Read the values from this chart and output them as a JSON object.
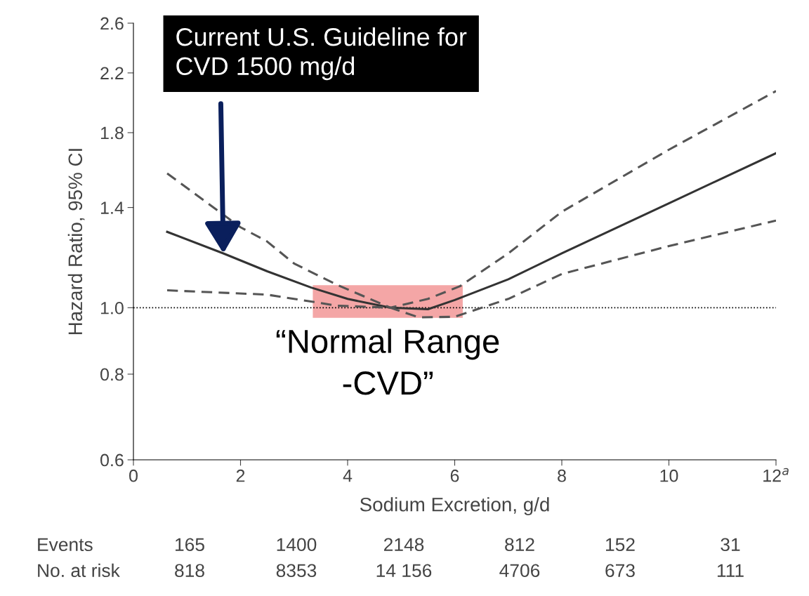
{
  "chart_data": {
    "type": "line",
    "xlabel": "Sodium Excretion, g/d",
    "ylabel": "Hazard Ratio, 95% CI",
    "log": "y",
    "xlim": [
      0,
      12
    ],
    "xticks": [
      0,
      2,
      4,
      6,
      8,
      10,
      {
        "value": 12,
        "label": "12$^{a}$"
      }
    ],
    "ylim": [
      0.6,
      2.6
    ],
    "yticks": [
      0.6,
      0.8,
      {
        "value": 1.0,
        "label": "1.0"
      },
      1.4,
      1.8,
      2.2,
      2.6
    ],
    "grid": false,
    "legend": false,
    "series": [
      {
        "color": "#333333",
        "line_style": "solid",
        "x": [
          0.63,
          1.68,
          2.5,
          3.32,
          4.0,
          4.8,
          5.5,
          6.0,
          7.0,
          8.0,
          10.0,
          12.0
        ],
        "values": [
          1.29,
          1.2,
          1.13,
          1.07,
          1.03,
          1.0,
          0.995,
          1.026,
          1.1,
          1.2,
          1.42,
          1.68
        ]
      },
      {
        "color": "#555555",
        "line_style": "dashed",
        "x": [
          0.63,
          2.0,
          2.49,
          3.0,
          3.8,
          4.8,
          5.5,
          6.1,
          7.0,
          8.0,
          10.0,
          12.0
        ],
        "values": [
          1.57,
          1.31,
          1.25,
          1.16,
          1.08,
          1.0,
          1.03,
          1.075,
          1.2,
          1.38,
          1.7,
          2.07
        ]
      },
      {
        "color": "#555555",
        "line_style": "dashed",
        "x": [
          0.63,
          2.49,
          3.8,
          4.8,
          5.33,
          6.0,
          7.0,
          8.0,
          10.0,
          12.0
        ],
        "values": [
          1.06,
          1.045,
          1.007,
          1.0,
          0.968,
          0.97,
          1.03,
          1.12,
          1.23,
          1.34
        ]
      }
    ],
    "ref_lines": [
      {
        "axis": "y",
        "value": 1.0,
        "color": "#000000",
        "line_style": "dotted"
      }
    ],
    "bands": [
      {
        "axis": "x",
        "from": 3.35,
        "to": 6.15,
        "color": "#f4a6a6",
        "label": "“Normal Range\n-CVD”"
      }
    ],
    "annotations": [
      {
        "text": "Current U.S. Guideline for\nCVD 1500 mg/d",
        "x": 1.68,
        "y": 1.2
      },
      "Events",
      "165",
      "1400",
      "2148",
      "812",
      "152",
      "31",
      "No. at risk",
      "818",
      "8353",
      "14 156",
      "4706",
      "673",
      "111"
    ]
  }
}
